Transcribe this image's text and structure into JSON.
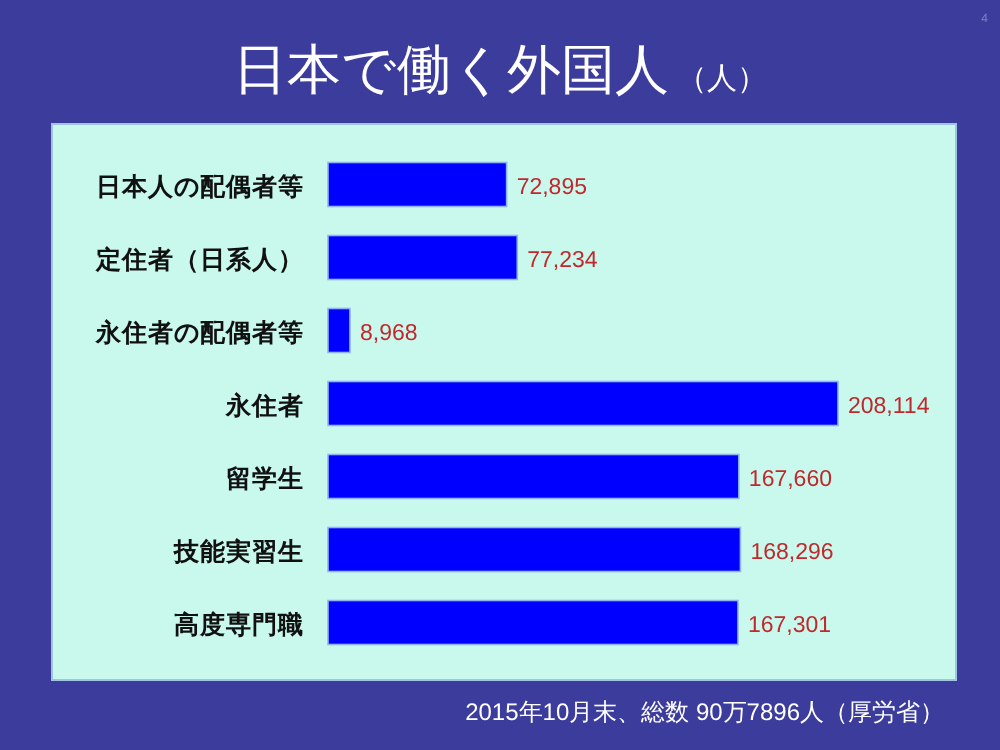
{
  "chart_data": {
    "type": "bar",
    "orientation": "horizontal",
    "title": "日本で働く外国人",
    "subtitle": "（人）",
    "categories": [
      "日本人の配偶者等",
      "定住者（日系人）",
      "永住者の配偶者等",
      "永住者",
      "留学生",
      "技能実習生",
      "高度専門職"
    ],
    "values": [
      72895,
      77234,
      8968,
      208114,
      167660,
      168296,
      167301
    ],
    "value_labels": [
      "72,895",
      "77,234",
      "8,968",
      "208,114",
      "167,660",
      "168,296",
      "167,301"
    ],
    "color": "#0000ff",
    "annotations": [
      "2015年10月末、総数 90万7896人（厚労省）",
      "4"
    ]
  }
}
